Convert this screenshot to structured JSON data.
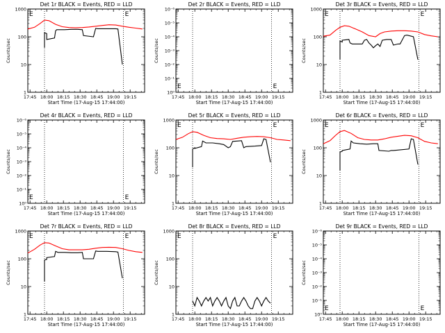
{
  "chart_data": [
    {
      "type": "line",
      "title": "Det 1r BLACK = Events, RED = LLD",
      "xlabel": "Start Time (17-Aug-15 17:44:00)",
      "ylabel": "Counts/sec",
      "x_ticks": [
        "17:45",
        "18:00",
        "18:15",
        "18:30",
        "18:45",
        "19:00",
        "19:15"
      ],
      "y_ticks": [
        "1",
        "10",
        "100",
        "1000"
      ],
      "y_scale": "log",
      "ylim": [
        1,
        1000
      ],
      "xlim_minutes": [
        -1,
        104
      ],
      "markers": [
        "E",
        "E"
      ],
      "marker_x": [
        -1,
        85
      ],
      "vlines": [
        14,
        85
      ],
      "series": [
        {
          "name": "RED = LLD",
          "color": "#ff0000",
          "x": [
            -1,
            5,
            10,
            14,
            18,
            24,
            30,
            36,
            42,
            48,
            54,
            60,
            66,
            72,
            78,
            84,
            90,
            96,
            102
          ],
          "y": [
            190,
            220,
            300,
            400,
            380,
            280,
            230,
            215,
            210,
            215,
            225,
            240,
            255,
            270,
            265,
            240,
            220,
            205,
            190
          ]
        },
        {
          "name": "BLACK = Events",
          "color": "#000000",
          "x": [
            14,
            14,
            16,
            16,
            23,
            24,
            25,
            32,
            38,
            44,
            48,
            49,
            58,
            60,
            62,
            78,
            80,
            84
          ],
          "y": [
            40,
            140,
            130,
            80,
            90,
            165,
            180,
            180,
            185,
            185,
            180,
            110,
            100,
            200,
            195,
            195,
            190,
            10
          ]
        }
      ]
    },
    {
      "type": "line",
      "title": "Det 2r BLACK = Events, RED = LLD",
      "xlabel": "Start Time (17-Aug-15 17:44:00)",
      "ylabel": "Counts/sec",
      "x_ticks": [
        "17:45",
        "18:00",
        "18:15",
        "18:30",
        "18:45",
        "19:00",
        "19:15"
      ],
      "y_ticks": [
        "10⁰",
        "10⁻¹",
        "10⁻²",
        "10⁻³",
        "10⁻⁴",
        "10⁻⁵",
        "10⁻⁶"
      ],
      "y_scale": "log",
      "ylim": [
        1e-06,
        1
      ],
      "xlim_minutes": [
        -1,
        104
      ],
      "markers": [
        "E",
        "E"
      ],
      "marker_x": [
        -1,
        85
      ],
      "vlines": [
        14,
        85
      ],
      "series": []
    },
    {
      "type": "line",
      "title": "Det 3r BLACK = Events, RED = LLD",
      "xlabel": "Start Time (17-Aug-15 17:44:00)",
      "ylabel": "Counts/sec",
      "x_ticks": [
        "17:45",
        "18:00",
        "18:15",
        "18:30",
        "18:45",
        "19:00",
        "19:15"
      ],
      "y_ticks": [
        "1",
        "10",
        "100",
        "1000"
      ],
      "y_scale": "log",
      "ylim": [
        1,
        1000
      ],
      "xlim_minutes": [
        -1,
        104
      ],
      "markers": [
        "E",
        "E"
      ],
      "marker_x": [
        -1,
        85
      ],
      "vlines": [
        14,
        85
      ],
      "series": [
        {
          "name": "RED = LLD",
          "color": "#ff0000",
          "x": [
            -1,
            5,
            10,
            14,
            18,
            22,
            28,
            34,
            40,
            46,
            50,
            54,
            60,
            66,
            72,
            78,
            84,
            90,
            96,
            102
          ],
          "y": [
            105,
            115,
            170,
            220,
            250,
            240,
            190,
            150,
            110,
            100,
            130,
            150,
            160,
            165,
            165,
            160,
            150,
            120,
            108,
            100
          ]
        },
        {
          "name": "BLACK = Events",
          "color": "#000000",
          "x": [
            14,
            14,
            16,
            16,
            22,
            23,
            25,
            30,
            34,
            36,
            38,
            40,
            42,
            44,
            46,
            48,
            50,
            52,
            56,
            60,
            62,
            66,
            68,
            72,
            74,
            76,
            80,
            84
          ],
          "y": [
            15,
            70,
            65,
            75,
            80,
            60,
            55,
            55,
            55,
            75,
            80,
            60,
            50,
            40,
            48,
            55,
            45,
            75,
            80,
            80,
            50,
            55,
            55,
            110,
            115,
            110,
            100,
            15
          ]
        }
      ]
    },
    {
      "type": "line",
      "title": "Det 4r BLACK = Events, RED = LLD",
      "xlabel": "Start Time (17-Aug-15 17:44:00)",
      "ylabel": "Counts/sec",
      "x_ticks": [
        "17:45",
        "18:00",
        "18:15",
        "18:30",
        "18:45",
        "19:00",
        "19:15"
      ],
      "y_ticks": [
        "10⁰",
        "10⁻¹",
        "10⁻²",
        "10⁻³",
        "10⁻⁴",
        "10⁻⁵",
        "10⁻⁶"
      ],
      "y_scale": "log",
      "ylim": [
        1e-06,
        1
      ],
      "xlim_minutes": [
        -1,
        104
      ],
      "markers": [
        "E",
        "E"
      ],
      "marker_x": [
        -1,
        85
      ],
      "vlines": [
        14,
        85
      ],
      "series": []
    },
    {
      "type": "line",
      "title": "Det 5r BLACK = Events, RED = LLD",
      "xlabel": "Start Time (17-Aug-15 17:44:00)",
      "ylabel": "Counts/sec",
      "x_ticks": [
        "17:45",
        "18:00",
        "18:15",
        "18:30",
        "18:45",
        "19:00",
        "19:15"
      ],
      "y_ticks": [
        "1",
        "10",
        "100",
        "1000"
      ],
      "y_scale": "log",
      "ylim": [
        1,
        1000
      ],
      "xlim_minutes": [
        -1,
        104
      ],
      "markers": [
        "E",
        "E"
      ],
      "marker_x": [
        -1,
        85
      ],
      "vlines": [
        14,
        85
      ],
      "series": [
        {
          "name": "RED = LLD",
          "color": "#ff0000",
          "x": [
            -1,
            5,
            10,
            14,
            18,
            24,
            30,
            36,
            42,
            48,
            54,
            60,
            66,
            72,
            78,
            84,
            90,
            96,
            102
          ],
          "y": [
            200,
            240,
            320,
            380,
            360,
            280,
            230,
            215,
            210,
            200,
            220,
            240,
            250,
            255,
            250,
            230,
            200,
            190,
            180
          ]
        },
        {
          "name": "BLACK = Events",
          "color": "#000000",
          "x": [
            14,
            14,
            16,
            16,
            22,
            23,
            26,
            32,
            38,
            42,
            46,
            48,
            50,
            58,
            60,
            62,
            70,
            76,
            78,
            80,
            84
          ],
          "y": [
            20,
            90,
            100,
            95,
            110,
            175,
            150,
            150,
            140,
            130,
            100,
            110,
            170,
            180,
            100,
            110,
            115,
            120,
            210,
            200,
            30
          ]
        }
      ]
    },
    {
      "type": "line",
      "title": "Det 6r BLACK = Events, RED = LLD",
      "xlabel": "Start Time (17-Aug-15 17:44:00)",
      "ylabel": "Counts/sec",
      "x_ticks": [
        "17:45",
        "18:00",
        "18:15",
        "18:30",
        "18:45",
        "19:00",
        "19:15"
      ],
      "y_ticks": [
        "1",
        "10",
        "100",
        "1000"
      ],
      "y_scale": "log",
      "ylim": [
        1,
        1000
      ],
      "xlim_minutes": [
        -1,
        104
      ],
      "markers": [
        "E",
        "E"
      ],
      "marker_x": [
        -1,
        85
      ],
      "vlines": [
        14,
        85
      ],
      "series": [
        {
          "name": "RED = LLD",
          "color": "#ff0000",
          "x": [
            -1,
            5,
            10,
            14,
            18,
            24,
            30,
            36,
            42,
            48,
            54,
            60,
            66,
            72,
            78,
            84,
            90,
            96,
            102
          ],
          "y": [
            140,
            180,
            280,
            380,
            420,
            330,
            230,
            200,
            190,
            190,
            210,
            240,
            260,
            280,
            270,
            230,
            170,
            150,
            140
          ]
        },
        {
          "name": "BLACK = Events",
          "color": "#000000",
          "x": [
            14,
            14,
            16,
            16,
            23,
            24,
            26,
            32,
            38,
            44,
            48,
            49,
            58,
            60,
            62,
            76,
            78,
            80,
            84
          ],
          "y": [
            15,
            70,
            75,
            80,
            90,
            175,
            150,
            140,
            135,
            140,
            140,
            80,
            75,
            80,
            80,
            90,
            210,
            200,
            25
          ]
        }
      ]
    },
    {
      "type": "line",
      "title": "Det 7r BLACK = Events, RED = LLD",
      "xlabel": "Start Time (17-Aug-15 17:44:00)",
      "ylabel": "Counts/sec",
      "x_ticks": [
        "17:45",
        "18:00",
        "18:15",
        "18:30",
        "18:45",
        "19:00",
        "19:15"
      ],
      "y_ticks": [
        "1",
        "10",
        "100",
        "1000"
      ],
      "y_scale": "log",
      "ylim": [
        1,
        1000
      ],
      "xlim_minutes": [
        -1,
        104
      ],
      "markers": [
        "E",
        "E"
      ],
      "marker_x": [
        -1,
        85
      ],
      "vlines": [
        14,
        85
      ],
      "series": [
        {
          "name": "RED = LLD",
          "color": "#ff0000",
          "x": [
            -1,
            5,
            10,
            14,
            18,
            24,
            30,
            36,
            42,
            48,
            54,
            60,
            66,
            72,
            78,
            84,
            90,
            96,
            102
          ],
          "y": [
            160,
            220,
            310,
            380,
            370,
            290,
            230,
            210,
            210,
            210,
            220,
            240,
            255,
            260,
            255,
            230,
            200,
            180,
            170
          ]
        },
        {
          "name": "BLACK = Events",
          "color": "#000000",
          "x": [
            14,
            14,
            16,
            16,
            23,
            24,
            26,
            32,
            38,
            44,
            48,
            49,
            58,
            60,
            62,
            70,
            78,
            80,
            84
          ],
          "y": [
            15,
            90,
            95,
            110,
            120,
            185,
            170,
            170,
            165,
            165,
            170,
            100,
            100,
            190,
            185,
            185,
            180,
            175,
            20
          ]
        }
      ]
    },
    {
      "type": "line",
      "title": "Det 8r BLACK = Events, RED = LLD",
      "xlabel": "Start Time (17-Aug-15 17:44:00)",
      "ylabel": "Counts/sec",
      "x_ticks": [
        "17:45",
        "18:00",
        "18:15",
        "18:30",
        "18:45",
        "19:00",
        "19:15"
      ],
      "y_ticks": [
        "1",
        "10",
        "100",
        "1000"
      ],
      "y_scale": "log",
      "ylim": [
        1,
        1000
      ],
      "xlim_minutes": [
        -1,
        104
      ],
      "markers": [
        "E",
        "E"
      ],
      "marker_x": [
        -1,
        85
      ],
      "vlines": [
        14,
        85
      ],
      "series": [
        {
          "name": "BLACK = Events",
          "color": "#000000",
          "x": [
            14,
            16,
            18,
            20,
            22,
            24,
            26,
            28,
            30,
            32,
            34,
            36,
            38,
            40,
            42,
            44,
            46,
            48,
            50,
            52,
            54,
            56,
            58,
            60,
            62,
            64,
            66,
            68,
            70,
            72,
            74,
            76,
            78,
            80,
            82,
            84
          ],
          "y": [
            3,
            2,
            4,
            3,
            2,
            3,
            4,
            3,
            4,
            2,
            3,
            4,
            3,
            2,
            3,
            4,
            2,
            1.6,
            3,
            4,
            2,
            2,
            3,
            4,
            3,
            2,
            1.6,
            1.6,
            3,
            4,
            3,
            2,
            3,
            4,
            3,
            2.5
          ]
        }
      ]
    },
    {
      "type": "line",
      "title": "Det 9r BLACK = Events, RED = LLD",
      "xlabel": "Start Time (17-Aug-15 17:44:00)",
      "ylabel": "Counts/sec",
      "x_ticks": [
        "17:45",
        "18:00",
        "18:15",
        "18:30",
        "18:45",
        "19:00",
        "19:15"
      ],
      "y_ticks": [
        "10⁰",
        "10⁻¹",
        "10⁻²",
        "10⁻³",
        "10⁻⁴",
        "10⁻⁵",
        "10⁻⁶"
      ],
      "y_scale": "log",
      "ylim": [
        1e-06,
        1
      ],
      "xlim_minutes": [
        -1,
        104
      ],
      "markers": [
        "E",
        "E"
      ],
      "marker_x": [
        -1,
        85
      ],
      "vlines": [
        14,
        85
      ],
      "series": []
    }
  ]
}
